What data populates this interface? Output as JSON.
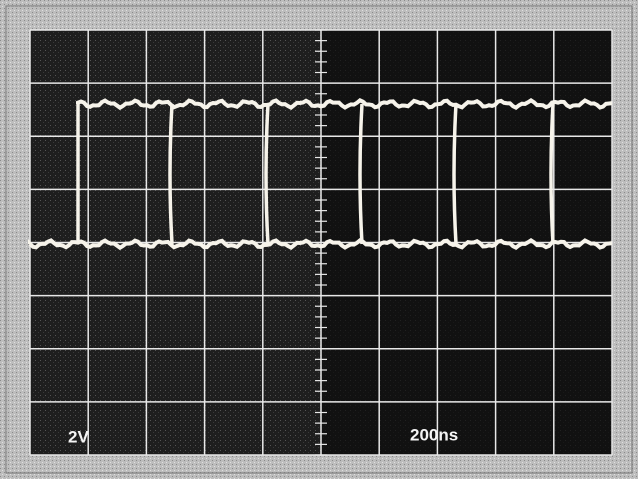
{
  "labels": {
    "volts_per_div": "2V",
    "time_per_div": "200ns"
  }
}
